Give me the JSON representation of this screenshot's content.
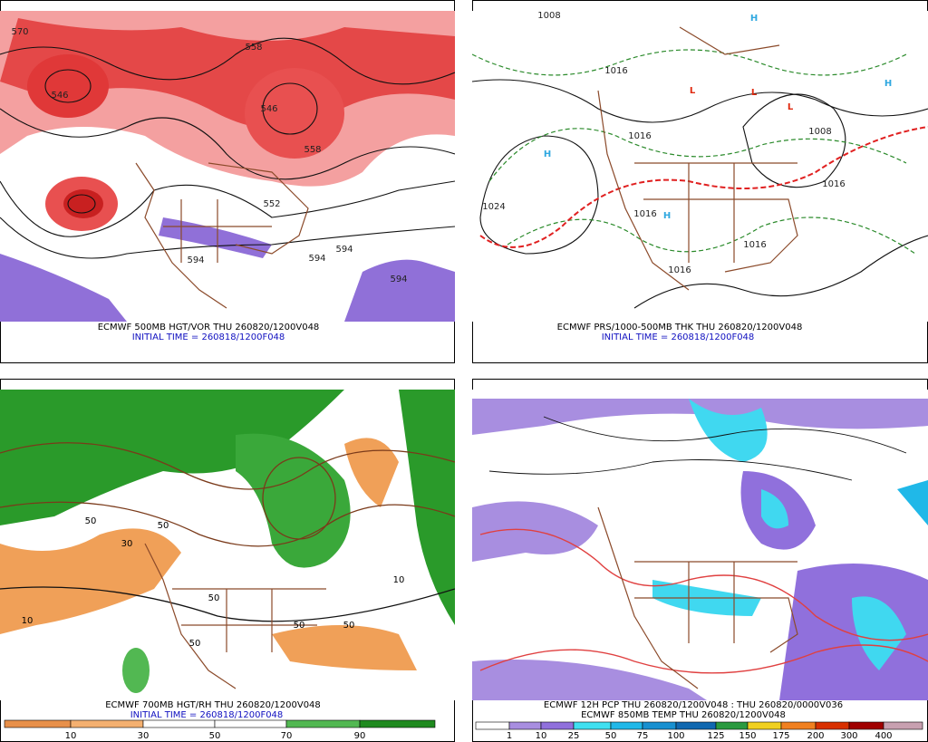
{
  "panels": [
    {
      "caption": "ECMWF 500MB HGT/VOR THU 260820/1200V048",
      "initial": "INITIAL TIME = 260818/1200F048",
      "contour_labels": [
        "570",
        "558",
        "546",
        "546",
        "558",
        "552",
        "594",
        "594",
        "594",
        "594"
      ]
    },
    {
      "caption": "ECMWF PRS/1000-500MB THK THU 260820/1200V048",
      "initial": "INITIAL TIME = 260818/1200F048",
      "contour_labels": [
        "1008",
        "1016",
        "1016",
        "1024",
        "1016",
        "1016",
        "1016",
        "1016",
        "1008"
      ],
      "centers": [
        "H",
        "H",
        "H",
        "H",
        "L",
        "L",
        "L"
      ]
    },
    {
      "caption": "ECMWF 700MB HGT/RH THU 260820/1200V048",
      "initial": "INITIAL TIME = 260818/1200F048",
      "contour_labels": [
        "50",
        "50",
        "50",
        "50",
        "50",
        "10",
        "10",
        "30",
        "50"
      ],
      "colorbar": {
        "colors": [
          "#e8904a",
          "#f4b070",
          "#ffffff",
          "#ffffff",
          "#52b852",
          "#1f8a1f"
        ],
        "labels": [
          10,
          30,
          50,
          70,
          90
        ]
      }
    },
    {
      "caption": "ECMWF 12H PCP THU 260820/1200V048 : THU 260820/0000V036",
      "caption2": "ECMWF 850MB TEMP THU 260820/1200V048",
      "colorbar": {
        "colors": [
          "#ffffff",
          "#a88ee0",
          "#9070dc",
          "#40e0f0",
          "#20b8e8",
          "#1890d0",
          "#1068b0",
          "#2a9a40",
          "#f0d020",
          "#f08020",
          "#d83000",
          "#a00000",
          "#c8a0b0"
        ],
        "labels": [
          1,
          10,
          25,
          50,
          75,
          100,
          125,
          150,
          175,
          200,
          300,
          400
        ]
      }
    }
  ]
}
